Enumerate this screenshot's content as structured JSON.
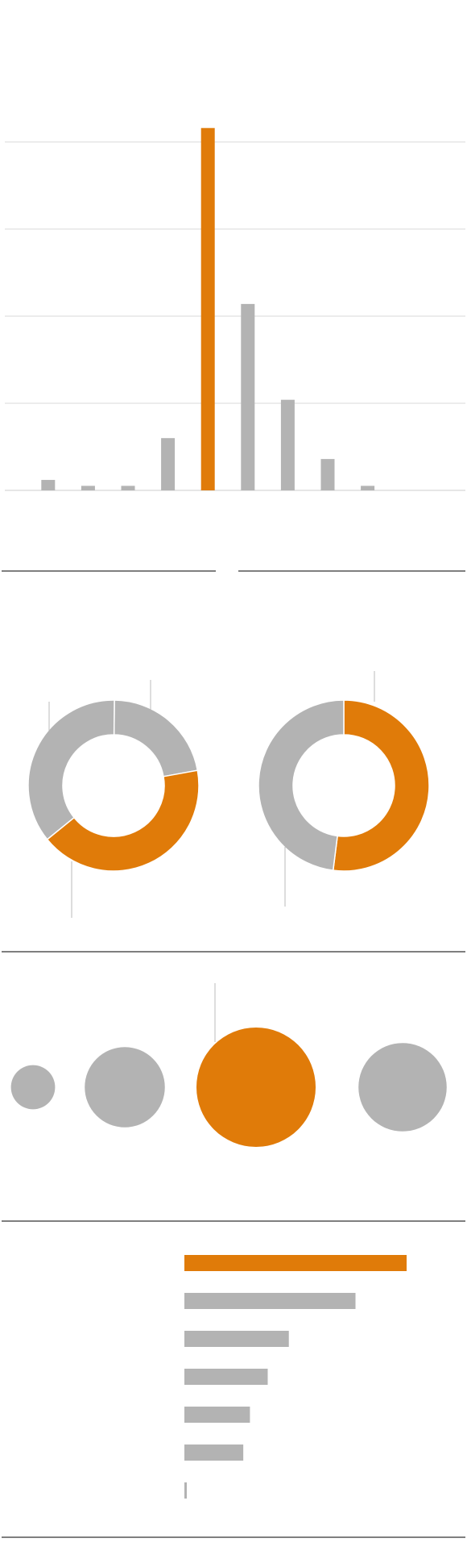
{
  "colors": {
    "accent": "#e07b09",
    "neutral": "#b3b3b3",
    "gridline": "#d9d9d9",
    "rule": "#333333",
    "leader": "#bbbbbb"
  },
  "chart_data": [
    {
      "type": "bar",
      "orientation": "vertical",
      "values": [
        3,
        1.3,
        1.3,
        15,
        104,
        53.5,
        26,
        9,
        1.3,
        0
      ],
      "highlight_index": 4,
      "ylim": [
        0,
        100
      ],
      "gridlines": [
        0,
        25,
        50,
        75,
        100
      ],
      "grid": true
    },
    {
      "type": "pie",
      "variant": "donut",
      "slices": [
        {
          "value": 22,
          "highlight": false
        },
        {
          "value": 42,
          "highlight": true
        },
        {
          "value": 36,
          "highlight": false
        }
      ]
    },
    {
      "type": "pie",
      "variant": "donut",
      "slices": [
        {
          "value": 52,
          "highlight": true
        },
        {
          "value": 48,
          "highlight": false
        }
      ]
    },
    {
      "type": "scatter",
      "variant": "bubble",
      "values": [
        1,
        3.3,
        7.3,
        4
      ],
      "highlight_index": 2
    },
    {
      "type": "bar",
      "orientation": "horizontal",
      "values": [
        100,
        77,
        47,
        37.5,
        29.5,
        26.5,
        1
      ],
      "highlight_index": 0,
      "xlim": [
        0,
        100
      ]
    }
  ]
}
